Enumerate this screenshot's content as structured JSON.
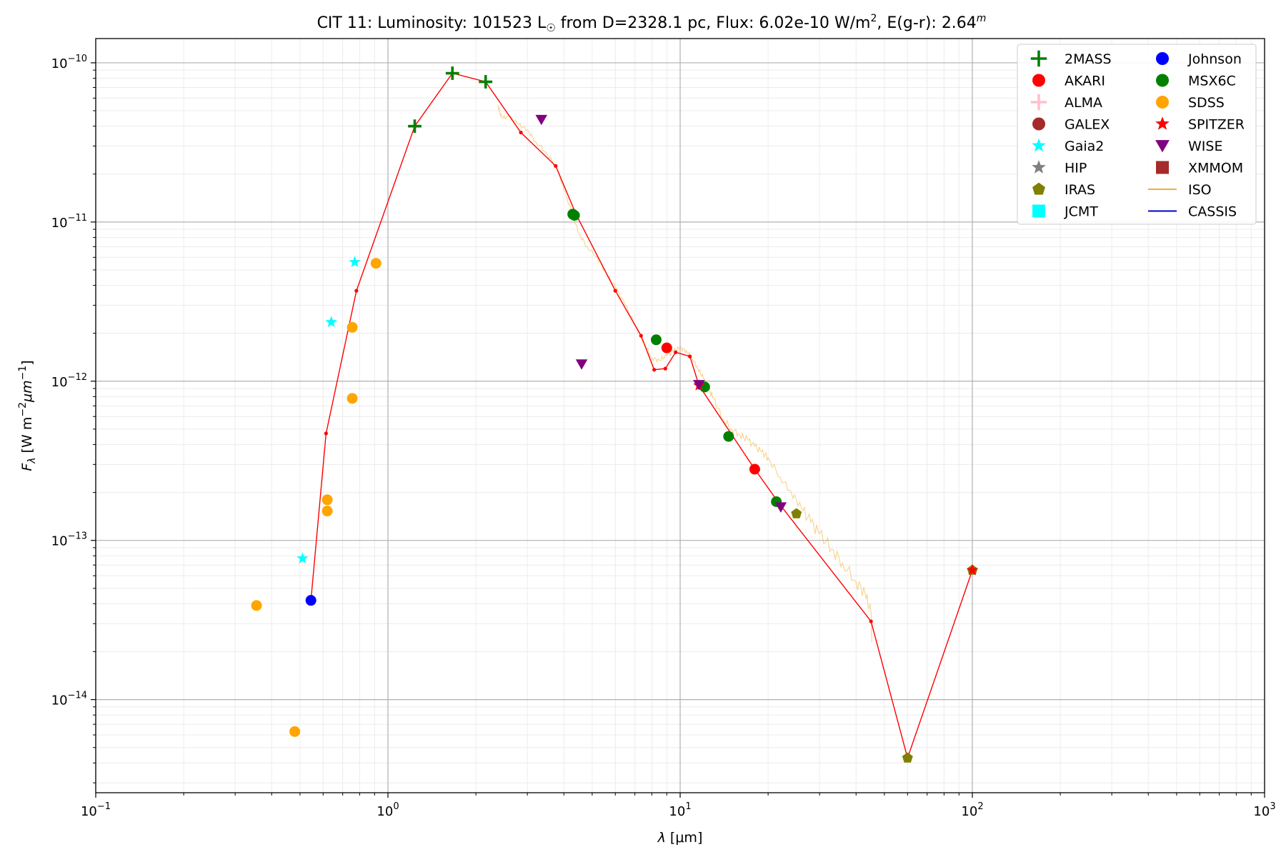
{
  "chart_data": {
    "type": "scatter",
    "title": {
      "prefix": "CIT 11:  Luminosity: 101523 L",
      "sun_symbol": "☉",
      "mid": " from D=2328.1 pc, Flux: 6.02e-10 W/m",
      "flux_unit_exp": "2",
      "tail": ", E(g-r): 2.64",
      "mag_exp": "m"
    },
    "xlabel": {
      "lambda": "λ",
      "unit": " [μm]"
    },
    "ylabel": {
      "symbol": "F",
      "sub": "λ",
      "unit_open": " [W m",
      "unit_exp1": "−2",
      "unit_mid": "μm",
      "unit_exp2": "−1",
      "unit_close": "]"
    },
    "x_scale": "log",
    "y_scale": "log",
    "xlim": [
      0.1,
      1000
    ],
    "ylim": [
      2.6e-15,
      1.42e-10
    ],
    "x_ticks": [
      {
        "base": "10",
        "exp": "−1"
      },
      {
        "base": "10",
        "exp": "0"
      },
      {
        "base": "10",
        "exp": "1"
      },
      {
        "base": "10",
        "exp": "2"
      },
      {
        "base": "10",
        "exp": "3"
      }
    ],
    "x_tick_values": [
      0.1,
      1,
      10,
      100,
      1000
    ],
    "y_ticks": [
      {
        "base": "10",
        "exp": "−14"
      },
      {
        "base": "10",
        "exp": "−13"
      },
      {
        "base": "10",
        "exp": "−12"
      },
      {
        "base": "10",
        "exp": "−11"
      },
      {
        "base": "10",
        "exp": "−10"
      }
    ],
    "y_tick_values": [
      1e-14,
      1e-13,
      1e-12,
      1e-11,
      1e-10
    ],
    "grid": true,
    "legend_position": "top-right",
    "legend": [
      {
        "label": "2MASS",
        "marker": "plus",
        "color": "#008000"
      },
      {
        "label": "AKARI",
        "marker": "circle",
        "color": "#ff0000"
      },
      {
        "label": "ALMA",
        "marker": "plus",
        "color": "#ffc0cb"
      },
      {
        "label": "GALEX",
        "marker": "circle",
        "color": "#a52a2a"
      },
      {
        "label": "Gaia2",
        "marker": "star",
        "color": "#00ffff"
      },
      {
        "label": "HIP",
        "marker": "star",
        "color": "#808080"
      },
      {
        "label": "IRAS",
        "marker": "pentagon",
        "color": "#808000"
      },
      {
        "label": "JCMT",
        "marker": "square",
        "color": "#00ffff"
      },
      {
        "label": "Johnson",
        "marker": "circle",
        "color": "#0000ff"
      },
      {
        "label": "MSX6C",
        "marker": "circle",
        "color": "#008000"
      },
      {
        "label": "SDSS",
        "marker": "circle",
        "color": "#ffa500"
      },
      {
        "label": "SPITZER",
        "marker": "star",
        "color": "#ff0000"
      },
      {
        "label": "WISE",
        "marker": "triangle-down",
        "color": "#800080"
      },
      {
        "label": "XMMOM",
        "marker": "square",
        "color": "#a52a2a"
      },
      {
        "label": "ISO",
        "marker": "line",
        "color": "#f0b030"
      },
      {
        "label": "CASSIS",
        "marker": "line",
        "color": "#0000cc"
      }
    ],
    "series": [
      {
        "name": "2MASS",
        "marker": "plus",
        "color": "#008000",
        "points": [
          [
            1.235,
            4e-11
          ],
          [
            1.662,
            8.6e-11
          ],
          [
            2.159,
            7.6e-11
          ]
        ]
      },
      {
        "name": "AKARI",
        "marker": "circle",
        "color": "#ff0000",
        "points": [
          [
            9.0,
            1.62e-12
          ],
          [
            18.0,
            2.8e-13
          ]
        ]
      },
      {
        "name": "Gaia2",
        "marker": "star",
        "color": "#00ffff",
        "points": [
          [
            0.51,
            7.7e-14
          ],
          [
            0.64,
            2.35e-12
          ],
          [
            0.77,
            5.6e-12
          ]
        ]
      },
      {
        "name": "IRAS",
        "marker": "pentagon",
        "color": "#808000",
        "points": [
          [
            25.0,
            1.47e-13
          ],
          [
            60.0,
            4.3e-15
          ],
          [
            100.0,
            6.5e-14
          ]
        ]
      },
      {
        "name": "Johnson",
        "marker": "circle",
        "color": "#0000ff",
        "points": [
          [
            0.545,
            4.2e-14
          ]
        ]
      },
      {
        "name": "MSX6C",
        "marker": "circle",
        "color": "#008000",
        "points": [
          [
            4.29,
            1.12e-11
          ],
          [
            4.35,
            1.1e-11
          ],
          [
            8.28,
            1.82e-12
          ],
          [
            12.13,
            9.2e-13
          ],
          [
            14.65,
            4.5e-13
          ],
          [
            21.34,
            1.75e-13
          ]
        ]
      },
      {
        "name": "SDSS",
        "marker": "circle",
        "color": "#ffa500",
        "points": [
          [
            0.355,
            3.9e-14
          ],
          [
            0.48,
            6.3e-15
          ],
          [
            0.62,
            1.8e-13
          ],
          [
            0.62,
            1.53e-13
          ],
          [
            0.755,
            2.18e-12
          ],
          [
            0.755,
            7.8e-13
          ],
          [
            0.91,
            5.5e-12
          ]
        ]
      },
      {
        "name": "SPITZER",
        "marker": "star",
        "color": "#ff0000",
        "points": [
          [
            11.6,
            9.4e-13
          ],
          [
            100.0,
            6.5e-14
          ]
        ]
      },
      {
        "name": "WISE",
        "marker": "triangle-down",
        "color": "#800080",
        "points": [
          [
            3.35,
            4.4e-11
          ],
          [
            4.6,
            1.28e-12
          ],
          [
            11.6,
            9.5e-13
          ],
          [
            22.1,
            1.62e-13
          ]
        ]
      }
    ],
    "model_line": {
      "color": "#ff0000",
      "points": [
        [
          0.545,
          4.2e-14
        ],
        [
          0.614,
          4.7e-13
        ],
        [
          0.78,
          3.7e-12
        ],
        [
          1.235,
          4e-11
        ],
        [
          1.662,
          8.6e-11
        ],
        [
          2.159,
          7.6e-11
        ],
        [
          2.85,
          3.65e-11
        ],
        [
          3.75,
          2.25e-11
        ],
        [
          4.42,
          1.1e-11
        ],
        [
          6.0,
          3.7e-12
        ],
        [
          7.35,
          1.93e-12
        ],
        [
          8.15,
          1.18e-12
        ],
        [
          8.9,
          1.2e-12
        ],
        [
          9.65,
          1.52e-12
        ],
        [
          10.8,
          1.43e-12
        ],
        [
          11.6,
          9.4e-13
        ],
        [
          18.0,
          2.8e-13
        ],
        [
          22.1,
          1.65e-13
        ],
        [
          45.0,
          3.1e-14
        ],
        [
          60.0,
          4.3e-15
        ],
        [
          100.0,
          6.5e-14
        ]
      ]
    },
    "iso_spectrum": {
      "color": "#f0b030",
      "points": [
        [
          2.38,
          5.4e-11
        ],
        [
          2.45,
          4.5e-11
        ],
        [
          2.6,
          4.6e-11
        ],
        [
          2.8,
          4.1e-11
        ],
        [
          3.0,
          3.8e-11
        ],
        [
          3.2,
          3.2e-11
        ],
        [
          3.5,
          2.7e-11
        ],
        [
          3.8,
          2.15e-11
        ],
        [
          4.0,
          1.6e-11
        ],
        [
          4.3,
          1.1e-11
        ],
        [
          4.5,
          8.5e-12
        ],
        [
          4.8,
          7e-12
        ],
        [
          5.2,
          6e-12
        ],
        [
          5.6,
          4.7e-12
        ],
        [
          6.0,
          3.9e-12
        ],
        [
          6.5,
          3e-12
        ],
        [
          7.0,
          2.25e-12
        ],
        [
          7.5,
          1.75e-12
        ],
        [
          8.0,
          1.4e-12
        ],
        [
          8.5,
          1.35e-12
        ],
        [
          9.0,
          1.45e-12
        ],
        [
          9.5,
          1.55e-12
        ],
        [
          10.0,
          1.62e-12
        ],
        [
          10.5,
          1.55e-12
        ],
        [
          11.0,
          1.4e-12
        ],
        [
          11.5,
          1.2e-12
        ],
        [
          12.0,
          1.05e-12
        ],
        [
          12.5,
          9e-13
        ],
        [
          13.0,
          7.8e-13
        ],
        [
          14.0,
          5.8e-13
        ],
        [
          15.0,
          5e-13
        ],
        [
          16.0,
          4.6e-13
        ],
        [
          17.0,
          4.3e-13
        ],
        [
          18.0,
          3.9e-13
        ],
        [
          19.0,
          3.6e-13
        ],
        [
          20.0,
          3.3e-13
        ],
        [
          22.0,
          2.5e-13
        ],
        [
          24.0,
          2e-13
        ],
        [
          26.0,
          1.6e-13
        ],
        [
          28.0,
          1.3e-13
        ],
        [
          30.0,
          1.1e-13
        ],
        [
          33.0,
          8.8e-14
        ],
        [
          36.0,
          7.2e-14
        ],
        [
          40.0,
          5.5e-14
        ],
        [
          43.0,
          4.6e-14
        ],
        [
          45.0,
          3.5e-14
        ],
        [
          45.3,
          2.3e-14
        ]
      ]
    }
  }
}
